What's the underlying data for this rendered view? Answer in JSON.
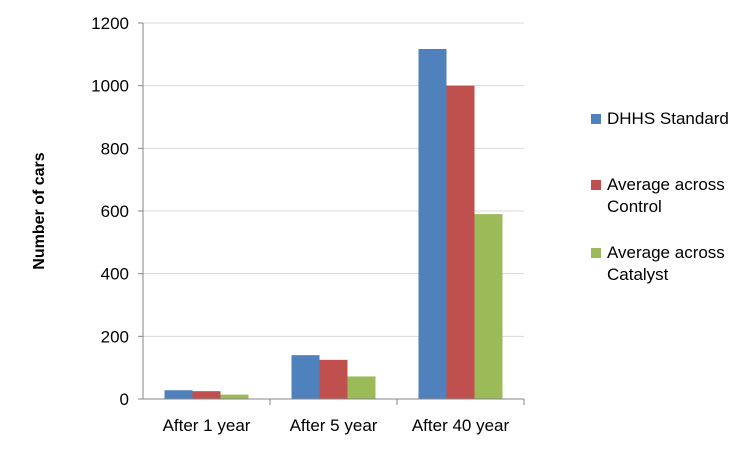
{
  "chart_data": {
    "type": "bar",
    "title": "",
    "xlabel": "",
    "ylabel": "Number of cars",
    "ylim": [
      0,
      1200
    ],
    "yticks": [
      0,
      200,
      400,
      600,
      800,
      1000,
      1200
    ],
    "grid": true,
    "legend_position": "right",
    "categories": [
      "After 1 year",
      "After 5 year",
      "After 40 year"
    ],
    "series": [
      {
        "name": "DHHS Standard",
        "legend_lines": [
          "DHHS Standard"
        ],
        "color": "#4f81bd",
        "values": [
          28,
          140,
          1117
        ]
      },
      {
        "name": "Average across Control",
        "legend_lines": [
          "Average across",
          "Control"
        ],
        "color": "#c0504d",
        "values": [
          25,
          125,
          1000
        ]
      },
      {
        "name": "Average across Catalyst",
        "legend_lines": [
          "Average across",
          "Catalyst"
        ],
        "color": "#9bbb59",
        "values": [
          14,
          72,
          590
        ]
      }
    ]
  }
}
